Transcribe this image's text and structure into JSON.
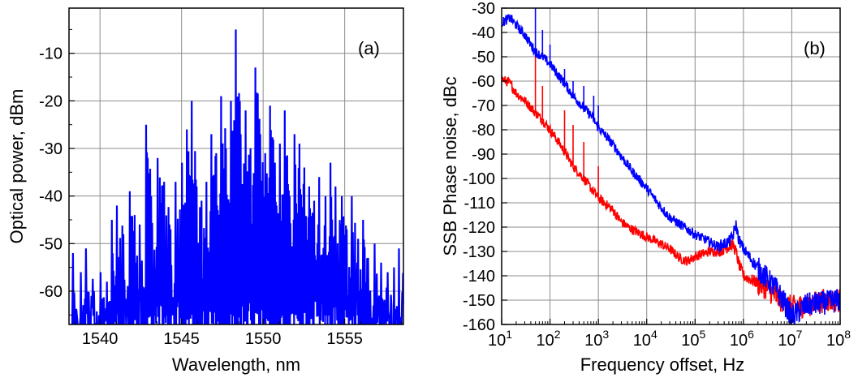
{
  "chart_data": [
    {
      "panel_label": "(a)",
      "type": "line",
      "xlabel": "Wavelength, nm",
      "ylabel": "Optical power, dBm",
      "xlim": [
        1538.1,
        1558.6
      ],
      "ylim": [
        -67,
        -0.5
      ],
      "xticks": [
        1540,
        1545,
        1550,
        1555
      ],
      "yticks": [
        -60,
        -50,
        -40,
        -30,
        -20,
        -10
      ],
      "grid": true,
      "series": [
        {
          "color": "#0000ff",
          "description_peaks": [
            [
              1538.3,
              -52
            ],
            [
              1538.8,
              -56
            ],
            [
              1539.1,
              -51
            ],
            [
              1539.6,
              -60
            ],
            [
              1540.0,
              -56
            ],
            [
              1540.4,
              -58
            ],
            [
              1540.7,
              -45
            ],
            [
              1541.0,
              -42
            ],
            [
              1541.4,
              -48
            ],
            [
              1541.8,
              -39
            ],
            [
              1542.1,
              -44
            ],
            [
              1542.4,
              -46
            ],
            [
              1542.8,
              -25
            ],
            [
              1543.1,
              -40
            ],
            [
              1543.5,
              -32
            ],
            [
              1543.9,
              -37
            ],
            [
              1544.3,
              -47
            ],
            [
              1544.6,
              -37
            ],
            [
              1545.0,
              -33
            ],
            [
              1545.3,
              -26
            ],
            [
              1545.6,
              -20
            ],
            [
              1545.9,
              -38
            ],
            [
              1546.2,
              -41
            ],
            [
              1546.5,
              -37
            ],
            [
              1546.8,
              -27
            ],
            [
              1547.1,
              -31
            ],
            [
              1547.4,
              -19
            ],
            [
              1547.7,
              -30
            ],
            [
              1548.0,
              -20
            ],
            [
              1548.3,
              -5
            ],
            [
              1548.6,
              -27
            ],
            [
              1548.9,
              -22
            ],
            [
              1549.2,
              -30
            ],
            [
              1549.5,
              -13
            ],
            [
              1549.8,
              -27
            ],
            [
              1550.1,
              -31
            ],
            [
              1550.4,
              -21
            ],
            [
              1550.7,
              -33
            ],
            [
              1551.0,
              -29
            ],
            [
              1551.3,
              -22
            ],
            [
              1551.6,
              -40
            ],
            [
              1551.9,
              -27
            ],
            [
              1552.2,
              -29
            ],
            [
              1552.5,
              -34
            ],
            [
              1552.8,
              -38
            ],
            [
              1553.1,
              -41
            ],
            [
              1553.4,
              -36
            ],
            [
              1553.8,
              -40
            ],
            [
              1554.1,
              -33
            ],
            [
              1554.4,
              -38
            ],
            [
              1554.8,
              -40
            ],
            [
              1555.1,
              -47
            ],
            [
              1555.4,
              -40
            ],
            [
              1555.8,
              -49
            ],
            [
              1556.1,
              -45
            ],
            [
              1556.4,
              -53
            ],
            [
              1556.8,
              -50
            ],
            [
              1557.2,
              -54
            ],
            [
              1557.6,
              -56
            ],
            [
              1558.0,
              -55
            ],
            [
              1558.3,
              -51
            ]
          ],
          "floor": -62
        }
      ]
    },
    {
      "panel_label": "(b)",
      "type": "line",
      "xlabel": "Frequency offset, Hz",
      "ylabel": "SSB Phase noise, dBc",
      "xscale": "log",
      "xlim": [
        10,
        100000000
      ],
      "ylim": [
        -160,
        -30
      ],
      "xticks": [
        10,
        100,
        1000,
        10000,
        100000,
        1000000,
        10000000,
        100000000
      ],
      "xtick_labels": [
        [
          "10",
          "1"
        ],
        [
          "10",
          "2"
        ],
        [
          "10",
          "3"
        ],
        [
          "10",
          "4"
        ],
        [
          "10",
          "5"
        ],
        [
          "10",
          "6"
        ],
        [
          "10",
          "7"
        ],
        [
          "10",
          "8"
        ]
      ],
      "yticks": [
        -160,
        -150,
        -140,
        -130,
        -120,
        -110,
        -100,
        -90,
        -80,
        -70,
        -60,
        -50,
        -40,
        -30
      ],
      "grid": true,
      "series": [
        {
          "color": "#0000ff",
          "x": [
            10,
            15,
            20,
            30,
            50,
            70,
            100,
            200,
            300,
            500,
            700,
            1000,
            2000,
            3000,
            5000,
            10000,
            20000,
            30000,
            50000,
            70000,
            100000,
            200000,
            300000,
            500000,
            600000,
            700000,
            800000,
            1000000,
            2000000,
            3000000,
            5000000,
            7000000,
            10000000,
            20000000,
            50000000,
            100000000
          ],
          "values": [
            -36,
            -34,
            -37,
            -41,
            -48,
            -50,
            -53,
            -61,
            -66,
            -71,
            -74,
            -79,
            -86,
            -91,
            -97,
            -104,
            -112,
            -116,
            -119,
            -121,
            -123,
            -126,
            -128,
            -126,
            -124,
            -119,
            -125,
            -129,
            -137,
            -141,
            -146,
            -151,
            -157,
            -152,
            -151,
            -150
          ],
          "spikes_x": [
            50,
            70,
            100,
            200,
            300,
            500,
            800,
            1000
          ],
          "spikes_values": [
            -30,
            -39,
            -45,
            -55,
            -60,
            -62,
            -66,
            -70
          ]
        },
        {
          "color": "#ff0000",
          "x": [
            10,
            15,
            20,
            30,
            50,
            70,
            100,
            150,
            200,
            300,
            500,
            700,
            1000,
            2000,
            3000,
            5000,
            10000,
            20000,
            30000,
            50000,
            70000,
            100000,
            200000,
            300000,
            500000,
            600000,
            700000,
            800000,
            1000000,
            2000000,
            3000000,
            5000000,
            10000000,
            20000000,
            50000000,
            100000000
          ],
          "values": [
            -59,
            -61,
            -65,
            -68,
            -73,
            -76,
            -80,
            -85,
            -89,
            -95,
            -100,
            -104,
            -108,
            -113,
            -118,
            -121,
            -124,
            -127,
            -129,
            -133,
            -134,
            -132,
            -130,
            -130,
            -128,
            -127,
            -130,
            -135,
            -140,
            -143,
            -145,
            -149,
            -153,
            -152,
            -150,
            -150
          ],
          "spikes_x": [
            50,
            70,
            200,
            300,
            500,
            1000
          ],
          "spikes_values": [
            -48,
            -62,
            -72,
            -78,
            -85,
            -95
          ]
        }
      ]
    }
  ]
}
